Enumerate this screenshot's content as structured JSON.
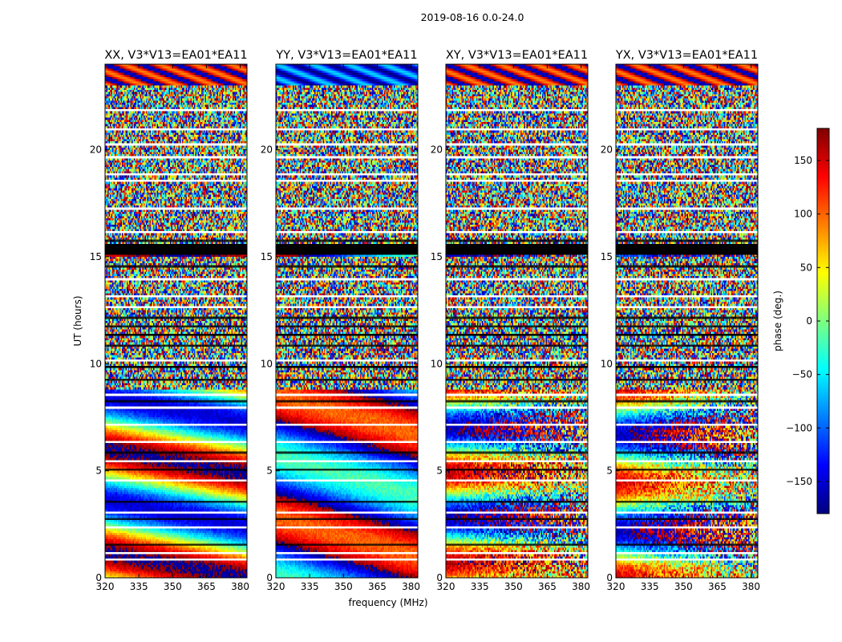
{
  "chart_data": {
    "type": "heatmap",
    "title": "2019-08-16 0.0-24.0",
    "xlabel": "frequency (MHz)",
    "ylabel": "UT (hours)",
    "xlim": [
      320,
      383
    ],
    "ylim": [
      0,
      24
    ],
    "xticks": [
      "320",
      "335",
      "350",
      "365",
      "380"
    ],
    "xtick_values": [
      320,
      335,
      350,
      365,
      380
    ],
    "yticks": [
      "0",
      "5",
      "10",
      "15",
      "20"
    ],
    "ytick_values": [
      0,
      5,
      10,
      15,
      20
    ],
    "panels": [
      {
        "name": "XX",
        "title": "XX, V3*V13=EA01*EA11"
      },
      {
        "name": "YY",
        "title": "YY, V3*V13=EA01*EA11"
      },
      {
        "name": "XY",
        "title": "XY, V3*V13=EA01*EA11"
      },
      {
        "name": "YX",
        "title": "YX, V3*V13=EA01*EA11"
      }
    ],
    "colorbar": {
      "label": "phase (deg.)",
      "range": [
        -180,
        180
      ],
      "ticks": [
        "150",
        "100",
        "50",
        "0",
        "−50",
        "−100",
        "−150"
      ],
      "tick_values": [
        150,
        100,
        50,
        0,
        -50,
        -100,
        -150
      ],
      "colormap": "jet"
    },
    "flagged_hours": [
      [
        15.1,
        15.6
      ],
      [
        11.3,
        11.4
      ],
      [
        9.8,
        9.9
      ]
    ],
    "noise_hours": [
      [
        8.9,
        15.0
      ],
      [
        15.6,
        23.0
      ]
    ],
    "colors": {
      "flag_black": "#000000",
      "gap_white": "#ffffff",
      "jet": [
        "#00007f",
        "#0000ff",
        "#007fff",
        "#00ffff",
        "#7fff7f",
        "#ffff00",
        "#ff7f00",
        "#ff0000",
        "#7f0000"
      ]
    }
  }
}
